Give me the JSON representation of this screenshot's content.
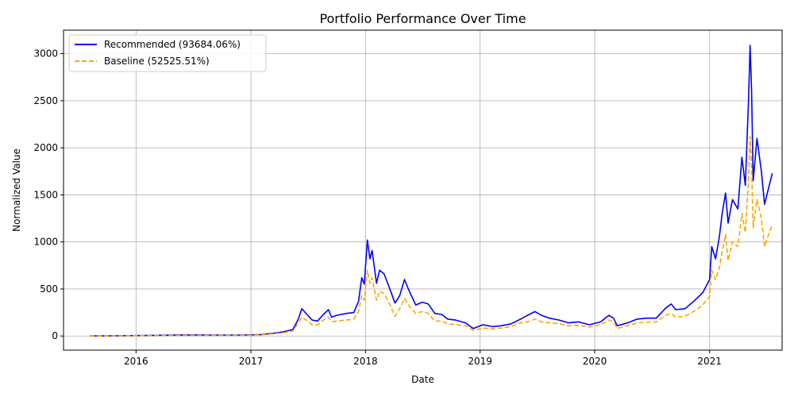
{
  "chart_data": {
    "type": "line",
    "title": "Portfolio Performance Over Time",
    "xlabel": "Date",
    "ylabel": "Normalized Value",
    "xlim": [
      "2015-05-15",
      "2021-08-20"
    ],
    "ylim": [
      -150,
      3250
    ],
    "x_ticks": [
      "2016-01-01",
      "2017-01-01",
      "2018-01-01",
      "2019-01-01",
      "2020-01-01",
      "2021-01-01"
    ],
    "x_tick_labels": [
      "2016",
      "2017",
      "2018",
      "2019",
      "2020",
      "2021"
    ],
    "y_ticks": [
      0,
      500,
      1000,
      1500,
      2000,
      2500,
      3000
    ],
    "y_tick_labels": [
      "0",
      "500",
      "1000",
      "1500",
      "2000",
      "2500",
      "3000"
    ],
    "grid": true,
    "legend_position": "top-left",
    "series": [
      {
        "name": "Recommended (93684.06%)",
        "color": "#0000ff",
        "style": "solid",
        "points": [
          [
            "2015-08-07",
            1
          ],
          [
            "2015-11-01",
            3
          ],
          [
            "2016-02-01",
            5
          ],
          [
            "2016-06-01",
            12
          ],
          [
            "2016-09-01",
            10
          ],
          [
            "2016-12-01",
            10
          ],
          [
            "2017-02-01",
            15
          ],
          [
            "2017-03-15",
            30
          ],
          [
            "2017-04-15",
            45
          ],
          [
            "2017-05-15",
            70
          ],
          [
            "2017-06-01",
            180
          ],
          [
            "2017-06-12",
            290
          ],
          [
            "2017-07-01",
            220
          ],
          [
            "2017-07-15",
            170
          ],
          [
            "2017-08-01",
            160
          ],
          [
            "2017-08-20",
            230
          ],
          [
            "2017-09-05",
            280
          ],
          [
            "2017-09-15",
            200
          ],
          [
            "2017-10-01",
            220
          ],
          [
            "2017-11-01",
            240
          ],
          [
            "2017-11-25",
            250
          ],
          [
            "2017-12-10",
            370
          ],
          [
            "2017-12-20",
            620
          ],
          [
            "2017-12-28",
            550
          ],
          [
            "2018-01-07",
            1020
          ],
          [
            "2018-01-15",
            820
          ],
          [
            "2018-01-22",
            910
          ],
          [
            "2018-02-05",
            560
          ],
          [
            "2018-02-15",
            700
          ],
          [
            "2018-03-01",
            660
          ],
          [
            "2018-03-15",
            540
          ],
          [
            "2018-04-05",
            350
          ],
          [
            "2018-04-20",
            430
          ],
          [
            "2018-05-05",
            600
          ],
          [
            "2018-05-20",
            480
          ],
          [
            "2018-06-10",
            330
          ],
          [
            "2018-07-01",
            360
          ],
          [
            "2018-07-20",
            340
          ],
          [
            "2018-08-10",
            240
          ],
          [
            "2018-09-01",
            230
          ],
          [
            "2018-09-20",
            180
          ],
          [
            "2018-10-15",
            170
          ],
          [
            "2018-11-15",
            140
          ],
          [
            "2018-12-10",
            80
          ],
          [
            "2019-01-10",
            120
          ],
          [
            "2019-02-10",
            100
          ],
          [
            "2019-03-10",
            110
          ],
          [
            "2019-04-10",
            130
          ],
          [
            "2019-05-10",
            180
          ],
          [
            "2019-06-01",
            220
          ],
          [
            "2019-06-25",
            260
          ],
          [
            "2019-07-15",
            220
          ],
          [
            "2019-08-10",
            190
          ],
          [
            "2019-09-10",
            170
          ],
          [
            "2019-10-10",
            140
          ],
          [
            "2019-11-10",
            150
          ],
          [
            "2019-12-15",
            120
          ],
          [
            "2020-01-20",
            150
          ],
          [
            "2020-02-15",
            220
          ],
          [
            "2020-03-01",
            190
          ],
          [
            "2020-03-13",
            110
          ],
          [
            "2020-04-15",
            140
          ],
          [
            "2020-05-15",
            180
          ],
          [
            "2020-06-15",
            190
          ],
          [
            "2020-07-15",
            190
          ],
          [
            "2020-08-15",
            300
          ],
          [
            "2020-09-01",
            340
          ],
          [
            "2020-09-15",
            280
          ],
          [
            "2020-10-15",
            290
          ],
          [
            "2020-11-15",
            380
          ],
          [
            "2020-12-10",
            460
          ],
          [
            "2021-01-01",
            600
          ],
          [
            "2021-01-08",
            950
          ],
          [
            "2021-01-20",
            820
          ],
          [
            "2021-02-01",
            1050
          ],
          [
            "2021-02-10",
            1300
          ],
          [
            "2021-02-21",
            1520
          ],
          [
            "2021-03-01",
            1200
          ],
          [
            "2021-03-15",
            1450
          ],
          [
            "2021-04-01",
            1350
          ],
          [
            "2021-04-14",
            1900
          ],
          [
            "2021-04-25",
            1600
          ],
          [
            "2021-05-05",
            2500
          ],
          [
            "2021-05-10",
            3090
          ],
          [
            "2021-05-15",
            2600
          ],
          [
            "2021-05-20",
            1650
          ],
          [
            "2021-06-01",
            2100
          ],
          [
            "2021-06-15",
            1750
          ],
          [
            "2021-06-25",
            1400
          ],
          [
            "2021-07-10",
            1600
          ],
          [
            "2021-07-20",
            1730
          ]
        ]
      },
      {
        "name": "Baseline (52525.51%)",
        "color": "#ffa500",
        "style": "dashed",
        "points": [
          [
            "2015-08-07",
            1
          ],
          [
            "2015-11-01",
            2
          ],
          [
            "2016-02-01",
            4
          ],
          [
            "2016-06-01",
            9
          ],
          [
            "2016-09-01",
            8
          ],
          [
            "2016-12-01",
            8
          ],
          [
            "2017-02-01",
            12
          ],
          [
            "2017-03-15",
            25
          ],
          [
            "2017-04-15",
            35
          ],
          [
            "2017-05-15",
            55
          ],
          [
            "2017-06-01",
            140
          ],
          [
            "2017-06-12",
            200
          ],
          [
            "2017-07-01",
            160
          ],
          [
            "2017-07-15",
            120
          ],
          [
            "2017-08-01",
            120
          ],
          [
            "2017-08-20",
            170
          ],
          [
            "2017-09-05",
            200
          ],
          [
            "2017-09-15",
            150
          ],
          [
            "2017-10-01",
            160
          ],
          [
            "2017-11-01",
            170
          ],
          [
            "2017-11-25",
            180
          ],
          [
            "2017-12-10",
            260
          ],
          [
            "2017-12-20",
            430
          ],
          [
            "2017-12-28",
            380
          ],
          [
            "2018-01-07",
            700
          ],
          [
            "2018-01-15",
            560
          ],
          [
            "2018-01-22",
            620
          ],
          [
            "2018-02-05",
            380
          ],
          [
            "2018-02-15",
            480
          ],
          [
            "2018-03-01",
            450
          ],
          [
            "2018-03-15",
            370
          ],
          [
            "2018-04-05",
            210
          ],
          [
            "2018-04-20",
            290
          ],
          [
            "2018-05-05",
            400
          ],
          [
            "2018-05-20",
            320
          ],
          [
            "2018-06-10",
            240
          ],
          [
            "2018-07-01",
            260
          ],
          [
            "2018-07-20",
            240
          ],
          [
            "2018-08-10",
            160
          ],
          [
            "2018-09-01",
            160
          ],
          [
            "2018-09-20",
            130
          ],
          [
            "2018-10-15",
            120
          ],
          [
            "2018-11-15",
            110
          ],
          [
            "2018-12-10",
            60
          ],
          [
            "2019-01-10",
            85
          ],
          [
            "2019-02-10",
            75
          ],
          [
            "2019-03-10",
            85
          ],
          [
            "2019-04-10",
            100
          ],
          [
            "2019-05-10",
            140
          ],
          [
            "2019-06-01",
            150
          ],
          [
            "2019-06-25",
            180
          ],
          [
            "2019-07-15",
            150
          ],
          [
            "2019-08-10",
            140
          ],
          [
            "2019-09-10",
            130
          ],
          [
            "2019-10-10",
            110
          ],
          [
            "2019-11-10",
            115
          ],
          [
            "2019-12-15",
            95
          ],
          [
            "2020-01-20",
            120
          ],
          [
            "2020-02-15",
            170
          ],
          [
            "2020-03-01",
            150
          ],
          [
            "2020-03-13",
            80
          ],
          [
            "2020-04-15",
            110
          ],
          [
            "2020-05-15",
            140
          ],
          [
            "2020-06-15",
            145
          ],
          [
            "2020-07-15",
            150
          ],
          [
            "2020-08-15",
            220
          ],
          [
            "2020-09-01",
            240
          ],
          [
            "2020-09-15",
            200
          ],
          [
            "2020-10-15",
            210
          ],
          [
            "2020-11-15",
            270
          ],
          [
            "2020-12-10",
            330
          ],
          [
            "2021-01-01",
            420
          ],
          [
            "2021-01-08",
            700
          ],
          [
            "2021-01-20",
            600
          ],
          [
            "2021-02-01",
            720
          ],
          [
            "2021-02-10",
            900
          ],
          [
            "2021-02-21",
            1080
          ],
          [
            "2021-03-01",
            800
          ],
          [
            "2021-03-15",
            1000
          ],
          [
            "2021-04-01",
            950
          ],
          [
            "2021-04-14",
            1300
          ],
          [
            "2021-04-25",
            1100
          ],
          [
            "2021-05-05",
            1650
          ],
          [
            "2021-05-10",
            2120
          ],
          [
            "2021-05-15",
            1800
          ],
          [
            "2021-05-20",
            1150
          ],
          [
            "2021-06-01",
            1450
          ],
          [
            "2021-06-15",
            1250
          ],
          [
            "2021-06-25",
            950
          ],
          [
            "2021-07-10",
            1100
          ],
          [
            "2021-07-20",
            1180
          ]
        ]
      }
    ]
  }
}
